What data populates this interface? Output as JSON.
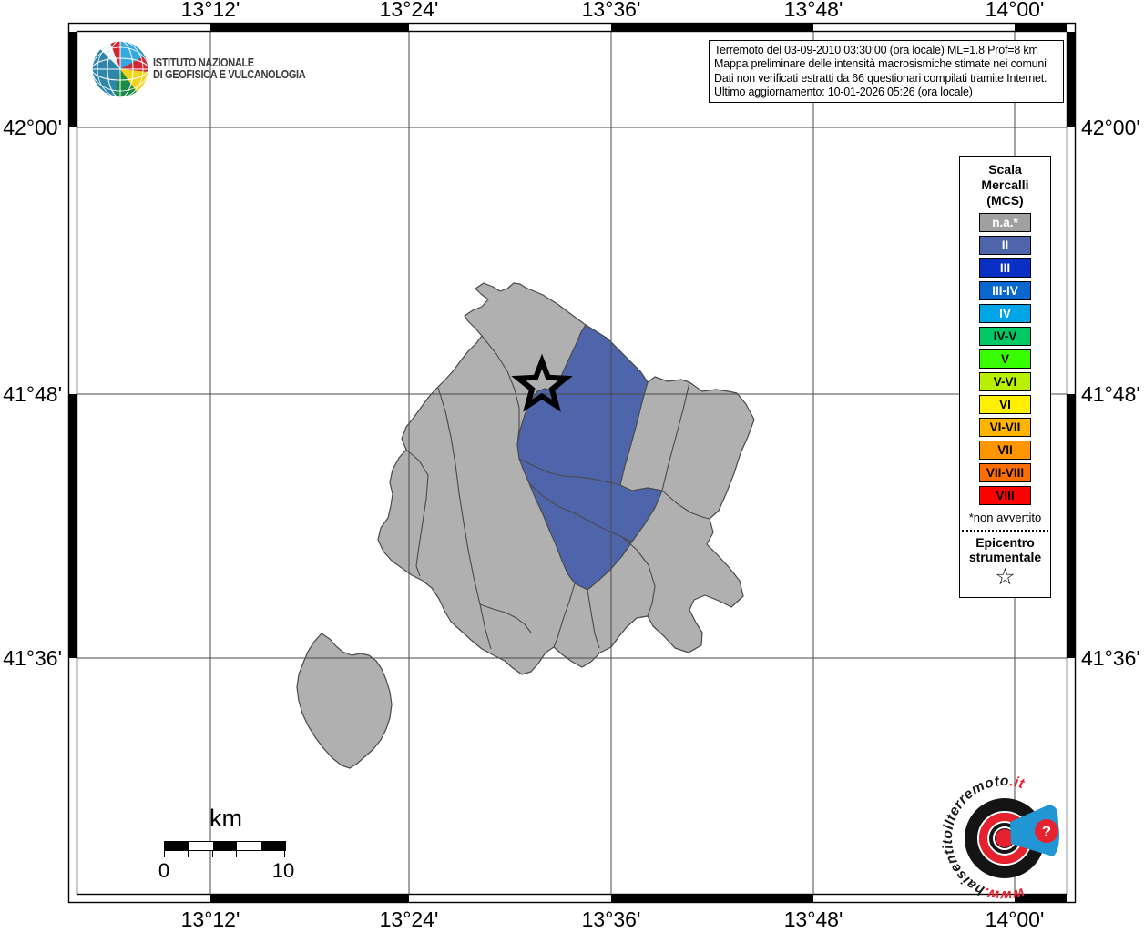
{
  "map_header": {
    "info_lines": [
      "Terremoto del 03-09-2010 03:30:00 (ora locale) ML=1.8 Prof=8 km",
      "Mappa preliminare delle intensità macrosismiche stimate nei comuni",
      "Dati non verificati estratti da 66 questionari compilati tramite Internet.",
      "Ultimo aggiornamento: 10-01-2026 05:26 (ora locale)"
    ]
  },
  "branding": {
    "institute_line1": "ISTITUTO NAZIONALE",
    "institute_line2": "DI GEOFISICA E VULCANOLOGIA"
  },
  "axes": {
    "lon_labels": [
      "13°12'",
      "13°24'",
      "13°36'",
      "13°48'",
      "14°00'"
    ],
    "lat_labels": [
      "42°00'",
      "41°48'",
      "41°36'"
    ]
  },
  "legend": {
    "title_lines": [
      "Scala",
      "Mercalli",
      "(MCS)"
    ],
    "items": [
      {
        "label": "n.a.*",
        "color": "#a0a0a0",
        "text_color": "#ffffff"
      },
      {
        "label": "II",
        "color": "#4e64ab",
        "text_color": "#ffffff"
      },
      {
        "label": "III",
        "color": "#0a2fc4",
        "text_color": "#ffffff"
      },
      {
        "label": "III-IV",
        "color": "#0968d0",
        "text_color": "#ffffff"
      },
      {
        "label": "IV",
        "color": "#00a5e8",
        "text_color": "#ffffff"
      },
      {
        "label": "IV-V",
        "color": "#00c864",
        "text_color": "#000000"
      },
      {
        "label": "V",
        "color": "#38ff00",
        "text_color": "#000000"
      },
      {
        "label": "V-VI",
        "color": "#b8f000",
        "text_color": "#000000"
      },
      {
        "label": "VI",
        "color": "#fff000",
        "text_color": "#000000"
      },
      {
        "label": "VI-VII",
        "color": "#ffb400",
        "text_color": "#000000"
      },
      {
        "label": "VII",
        "color": "#ff9600",
        "text_color": "#000000"
      },
      {
        "label": "VII-VIII",
        "color": "#ff6e00",
        "text_color": "#000000"
      },
      {
        "label": "VIII",
        "color": "#ff0000",
        "text_color": "#000000"
      }
    ],
    "footnote": "*non avvertito",
    "epicenter_title_lines": [
      "Epicentro",
      "strumentale"
    ],
    "epicenter_symbol": "☆"
  },
  "scale_bar": {
    "unit": "km",
    "start_label": "0",
    "end_label": "10"
  },
  "watermark": {
    "prefix": "www.",
    "name": "haisentitoilterremoto",
    "suffix": ".it",
    "badge": "?"
  },
  "map": {
    "colors": {
      "sea": "#ffffff",
      "land": "#b0b0b0",
      "intensity_ii": "#4e64ab",
      "boundary": "#4a4a4a"
    }
  }
}
